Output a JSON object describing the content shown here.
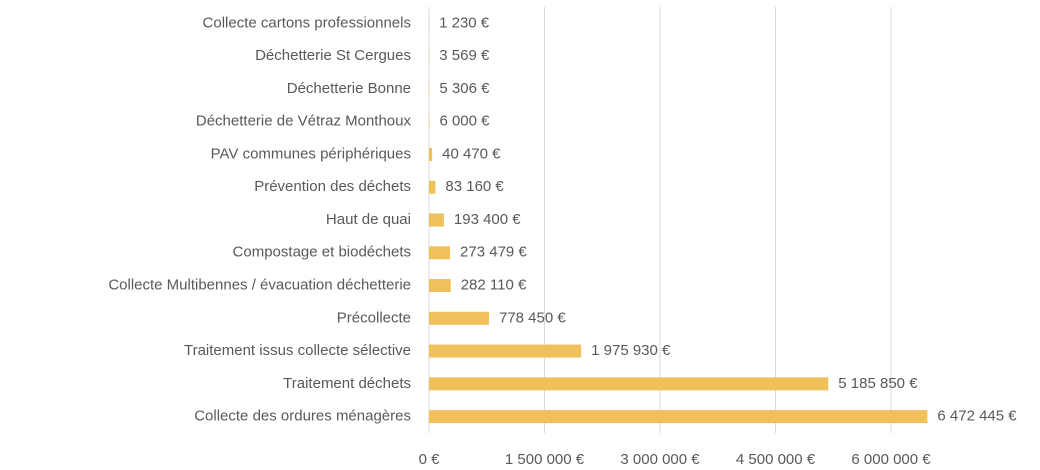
{
  "chart_data": {
    "type": "bar",
    "orientation": "horizontal",
    "categories": [
      "Collecte cartons professionnels",
      "Déchetterie St Cergues",
      "Déchetterie Bonne",
      "Déchetterie de Vétraz Monthoux",
      "PAV communes périphériques",
      "Prévention des déchets",
      "Haut de quai",
      "Compostage et biodéchets",
      "Collecte Multibennes / évacuation déchetterie",
      "Précollecte",
      "Traitement issus collecte sélective",
      "Traitement déchets",
      "Collecte des ordures ménagères"
    ],
    "values": [
      1230,
      3569,
      5306,
      6000,
      40470,
      83160,
      193400,
      273479,
      282110,
      778450,
      1975930,
      5185850,
      6472445
    ],
    "value_labels": [
      "1 230 €",
      "3 569 €",
      "5 306 €",
      "6 000 €",
      "40 470 €",
      "83 160 €",
      "193 400 €",
      "273 479 €",
      "282 110 €",
      "778 450 €",
      "1 975 930 €",
      "5 185 850 €",
      "6 472 445 €"
    ],
    "color": "#f0c05a",
    "xlim": [
      0,
      7000000
    ],
    "xticks": [
      {
        "value": 0,
        "label": "0 €"
      },
      {
        "value": 1500000,
        "label": "1 500 000 €"
      },
      {
        "value": 3000000,
        "label": "3 000 000 €"
      },
      {
        "value": 4500000,
        "label": "4 500 000 €"
      },
      {
        "value": 6000000,
        "label": "6 000 000 €"
      }
    ],
    "grid": true
  }
}
